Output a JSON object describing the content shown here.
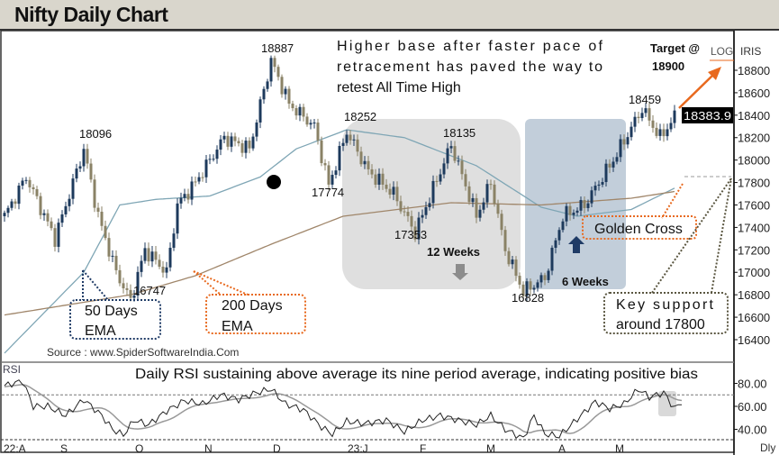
{
  "title": "Nifty Daily Chart",
  "chart_data": {
    "type": "candlestick",
    "title": "Nifty Daily Chart",
    "scale": "LOG",
    "provider": "IRIS",
    "period": "Dly",
    "last_price": "18383.9",
    "ylim": [
      16300,
      19000
    ],
    "yticks": [
      "18800",
      "18600",
      "18400",
      "18200",
      "18000",
      "17800",
      "17600",
      "17400",
      "17200",
      "17000",
      "16800",
      "16600",
      "16400"
    ],
    "xticks": [
      "22:A",
      "S",
      "O",
      "N",
      "D",
      "23:J",
      "F",
      "M",
      "A",
      "M"
    ],
    "price_keypoints": [
      {
        "i": 0,
        "close": 17500
      },
      {
        "i": 6,
        "close": 17850
      },
      {
        "i": 14,
        "close": 17300
      },
      {
        "i": 22,
        "close": 18096
      },
      {
        "i": 26,
        "close": 17500
      },
      {
        "i": 31,
        "close": 17000
      },
      {
        "i": 35,
        "close": 16747
      },
      {
        "i": 39,
        "close": 17200
      },
      {
        "i": 45,
        "close": 17000
      },
      {
        "i": 48,
        "close": 17600
      },
      {
        "i": 53,
        "close": 17800
      },
      {
        "i": 61,
        "close": 18200
      },
      {
        "i": 68,
        "close": 18100
      },
      {
        "i": 74,
        "close": 18887
      },
      {
        "i": 79,
        "close": 18500
      },
      {
        "i": 86,
        "close": 18300
      },
      {
        "i": 90,
        "close": 17774
      },
      {
        "i": 95,
        "close": 18252
      },
      {
        "i": 101,
        "close": 17900
      },
      {
        "i": 108,
        "close": 17700
      },
      {
        "i": 114,
        "close": 17353
      },
      {
        "i": 124,
        "close": 18135
      },
      {
        "i": 131,
        "close": 17500
      },
      {
        "i": 135,
        "close": 17800
      },
      {
        "i": 139,
        "close": 17200
      },
      {
        "i": 144,
        "close": 16828
      },
      {
        "i": 150,
        "close": 16950
      },
      {
        "i": 155,
        "close": 17500
      },
      {
        "i": 161,
        "close": 17600
      },
      {
        "i": 169,
        "close": 18000
      },
      {
        "i": 177,
        "close": 18459
      },
      {
        "i": 182,
        "close": 18200
      },
      {
        "i": 186,
        "close": 18384
      }
    ],
    "series": [
      {
        "name": "50 Days EMA",
        "color": "#7fa6b5",
        "points": [
          [
            0,
            16280
          ],
          [
            22,
            17000
          ],
          [
            32,
            17600
          ],
          [
            42,
            17650
          ],
          [
            57,
            17680
          ],
          [
            71,
            17850
          ],
          [
            81,
            18100
          ],
          [
            95,
            18270
          ],
          [
            111,
            18200
          ],
          [
            131,
            17950
          ],
          [
            149,
            17580
          ],
          [
            159,
            17500
          ],
          [
            174,
            17560
          ],
          [
            186,
            17750
          ]
        ]
      },
      {
        "name": "200 Days EMA",
        "color": "#a0866a",
        "points": [
          [
            0,
            16620
          ],
          [
            35,
            16800
          ],
          [
            53,
            16970
          ],
          [
            74,
            17250
          ],
          [
            94,
            17500
          ],
          [
            124,
            17620
          ],
          [
            149,
            17600
          ],
          [
            174,
            17660
          ],
          [
            186,
            17720
          ]
        ]
      }
    ],
    "swing_labels": [
      "18887",
      "18096",
      "16747",
      "18252",
      "17774",
      "18135",
      "17353",
      "16828",
      "18459"
    ],
    "rsi": {
      "label": "RSI",
      "yticks": [
        "80.00",
        "60.00",
        "40.00"
      ],
      "overbought": 70,
      "values": [
        [
          0,
          78
        ],
        [
          5,
          82
        ],
        [
          8,
          60
        ],
        [
          12,
          60
        ],
        [
          17,
          52
        ],
        [
          22,
          66
        ],
        [
          27,
          52
        ],
        [
          30,
          40
        ],
        [
          33,
          35
        ],
        [
          36,
          48
        ],
        [
          40,
          44
        ],
        [
          45,
          56
        ],
        [
          50,
          65
        ],
        [
          55,
          62
        ],
        [
          60,
          70
        ],
        [
          65,
          66
        ],
        [
          70,
          72
        ],
        [
          74,
          75
        ],
        [
          78,
          62
        ],
        [
          83,
          57
        ],
        [
          88,
          42
        ],
        [
          91,
          36
        ],
        [
          95,
          47
        ],
        [
          100,
          45
        ],
        [
          106,
          48
        ],
        [
          111,
          38
        ],
        [
          116,
          48
        ],
        [
          121,
          52
        ],
        [
          126,
          48
        ],
        [
          131,
          44
        ],
        [
          135,
          52
        ],
        [
          139,
          40
        ],
        [
          144,
          32
        ],
        [
          147,
          52
        ],
        [
          150,
          36
        ],
        [
          154,
          34
        ],
        [
          158,
          46
        ],
        [
          164,
          64
        ],
        [
          168,
          58
        ],
        [
          172,
          62
        ],
        [
          176,
          75
        ],
        [
          179,
          68
        ],
        [
          183,
          72
        ],
        [
          186,
          58
        ],
        [
          188,
          64
        ]
      ]
    }
  },
  "annotations": {
    "headline": "Higher base after faster pace of retracement has paved the way to retest All Time High",
    "target_line1": "Target @",
    "target_line2": "18900",
    "weeks12": "12 Weeks",
    "weeks6": "6 Weeks",
    "golden_cross": "Golden Cross",
    "key_support_line1": "Key support",
    "key_support_line2": "around 17800",
    "ema50_line1": "50  Days",
    "ema50_line2": "EMA",
    "ema200_line1": "200  Days",
    "ema200_line2": "EMA",
    "source": "Source : www.SpiderSoftwareIndia.Com",
    "rsi_note": "Daily RSI sustaining above average its nine period average, indicating positive bias"
  },
  "colors": {
    "orange": "#e8691e",
    "navy": "#1f3b66",
    "grey_box": "#d9d9d9",
    "blue_box": "#b7c6d3",
    "bull": "#1d3a5c",
    "bear": "#8a8266"
  }
}
